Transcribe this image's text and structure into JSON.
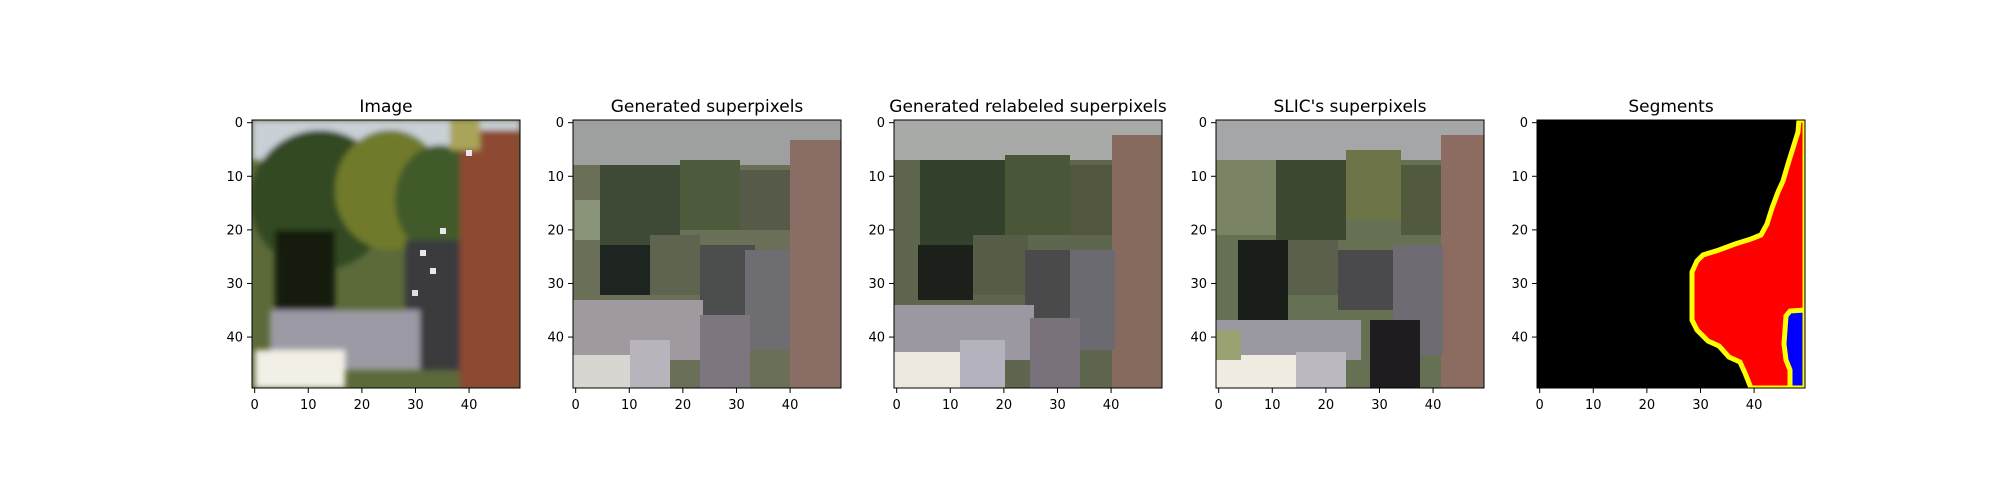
{
  "chart_data": [
    {
      "type": "heatmap",
      "title": "Image",
      "content": "photo",
      "x_ticks": [
        0,
        10,
        20,
        30,
        40
      ],
      "y_ticks": [
        0,
        10,
        20,
        30,
        40
      ],
      "xlim": [
        -0.5,
        49.5
      ],
      "ylim": [
        49.5,
        -0.5
      ],
      "grid": false
    },
    {
      "type": "heatmap",
      "title": "Generated superpixels",
      "content": "superpixels",
      "x_ticks": [
        0,
        10,
        20,
        30,
        40
      ],
      "y_ticks": [
        0,
        10,
        20,
        30,
        40
      ],
      "xlim": [
        -0.5,
        49.5
      ],
      "ylim": [
        49.5,
        -0.5
      ],
      "grid": false
    },
    {
      "type": "heatmap",
      "title": "Generated relabeled superpixels",
      "content": "relabeled",
      "x_ticks": [
        0,
        10,
        20,
        30,
        40
      ],
      "y_ticks": [
        0,
        10,
        20,
        30,
        40
      ],
      "xlim": [
        -0.5,
        49.5
      ],
      "ylim": [
        49.5,
        -0.5
      ],
      "grid": false
    },
    {
      "type": "heatmap",
      "title": "SLIC's superpixels",
      "content": "slic",
      "x_ticks": [
        0,
        10,
        20,
        30,
        40
      ],
      "y_ticks": [
        0,
        10,
        20,
        30,
        40
      ],
      "xlim": [
        -0.5,
        49.5
      ],
      "ylim": [
        49.5,
        -0.5
      ],
      "grid": false
    },
    {
      "type": "heatmap",
      "title": "Segments",
      "content": "segments",
      "x_ticks": [
        0,
        10,
        20,
        30,
        40
      ],
      "y_ticks": [
        0,
        10,
        20,
        30,
        40
      ],
      "xlim": [
        -0.5,
        49.5
      ],
      "ylim": [
        49.5,
        -0.5
      ],
      "grid": false,
      "segment_colors": [
        "#000000",
        "#ff0000",
        "#0000ff",
        "#ffff00"
      ],
      "segment_boundary": [
        {
          "row": 0,
          "col": 49
        },
        {
          "row": 2,
          "col": 48
        },
        {
          "row": 5,
          "col": 47
        },
        {
          "row": 8,
          "col": 46
        },
        {
          "row": 11,
          "col": 45
        },
        {
          "row": 13,
          "col": 44
        },
        {
          "row": 16,
          "col": 43
        },
        {
          "row": 19,
          "col": 42
        },
        {
          "row": 21,
          "col": 41
        },
        {
          "row": 22,
          "col": 39
        },
        {
          "row": 23,
          "col": 36
        },
        {
          "row": 24,
          "col": 33
        },
        {
          "row": 25,
          "col": 30
        },
        {
          "row": 26,
          "col": 29
        },
        {
          "row": 28,
          "col": 28
        },
        {
          "row": 34,
          "col": 28
        },
        {
          "row": 37,
          "col": 28
        },
        {
          "row": 39,
          "col": 29
        },
        {
          "row": 41,
          "col": 31
        },
        {
          "row": 42,
          "col": 33
        },
        {
          "row": 44,
          "col": 35
        },
        {
          "row": 45,
          "col": 37
        },
        {
          "row": 47,
          "col": 38
        },
        {
          "row": 49,
          "col": 39
        }
      ]
    }
  ]
}
